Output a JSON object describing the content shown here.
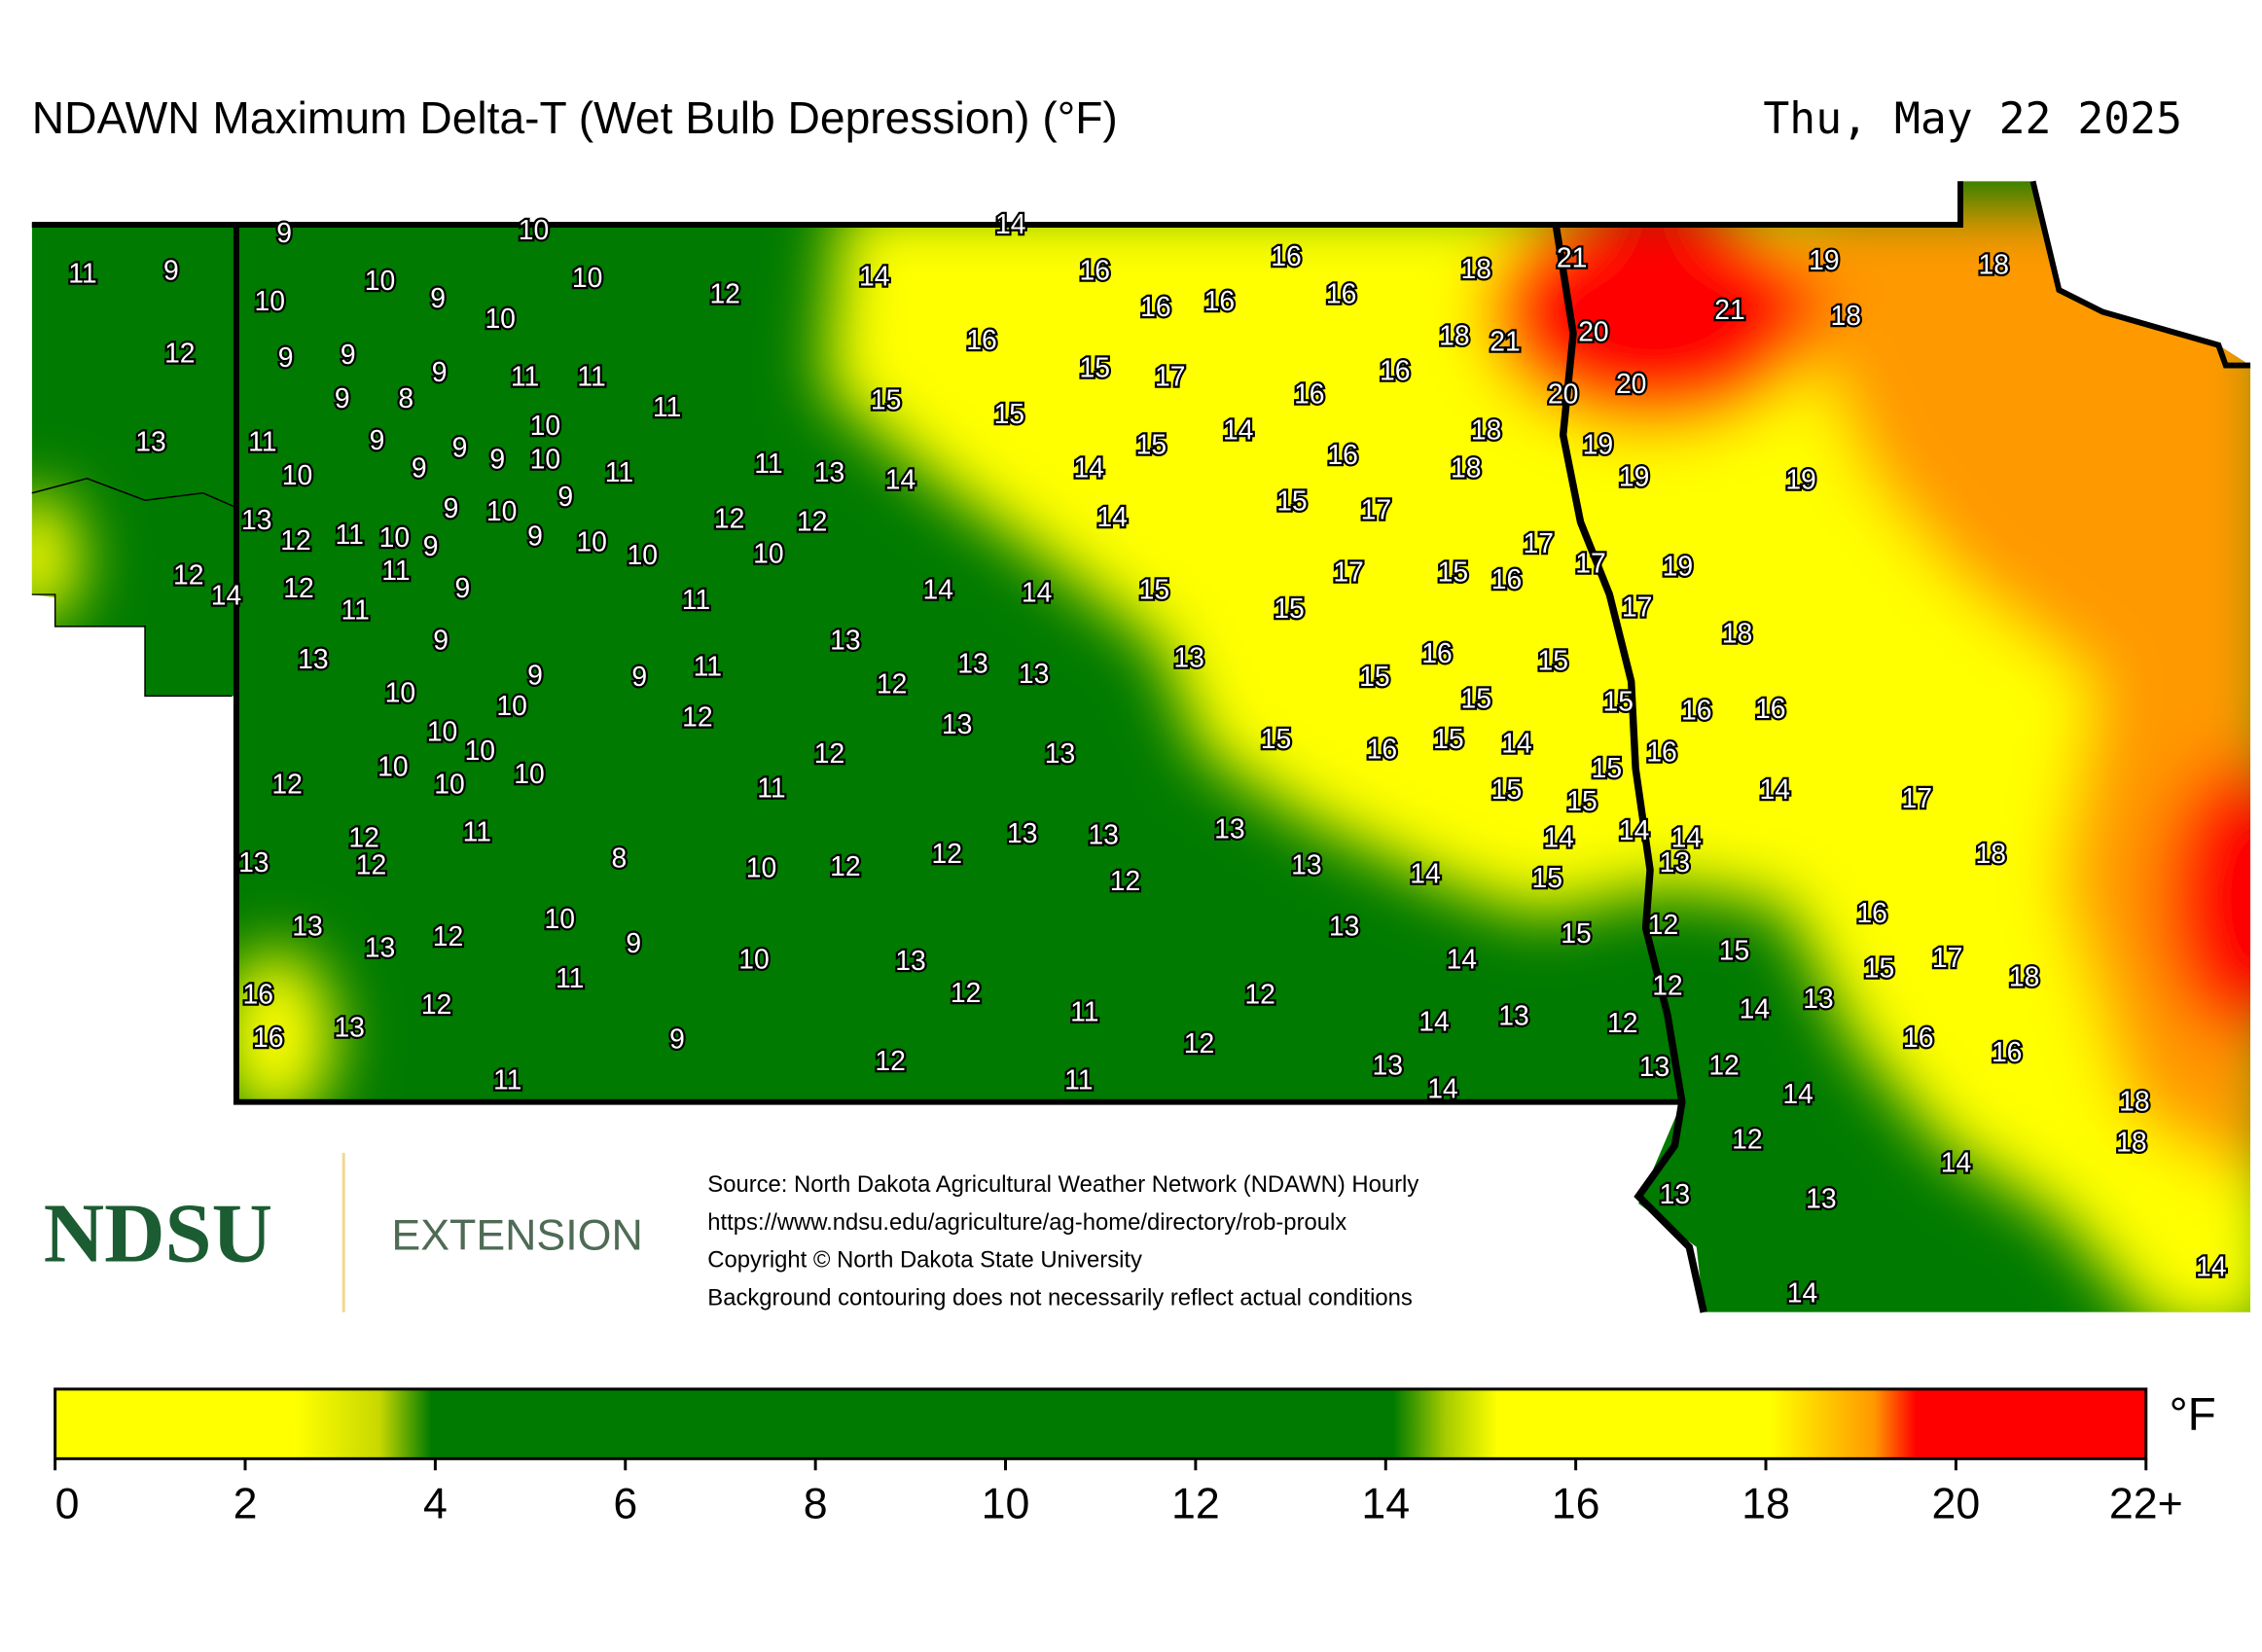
{
  "title": "NDAWN Maximum Delta-T (Wet Bulb Depression) (°F)",
  "date": "Thu, May 22 2025",
  "stations": [
    9,
    10,
    14,
    11,
    9,
    10,
    10,
    9,
    10,
    10,
    12,
    14,
    16,
    16,
    16,
    16,
    16,
    18,
    21,
    19,
    18,
    21,
    18,
    12,
    9,
    9,
    9,
    9,
    8,
    11,
    11,
    11,
    16,
    18,
    21,
    20,
    15,
    17,
    16,
    16,
    20,
    20,
    15,
    15,
    13,
    11,
    9,
    10,
    9,
    9,
    9,
    10,
    10,
    9,
    11,
    11,
    13,
    14,
    14,
    15,
    14,
    18,
    16,
    18,
    19,
    19,
    19,
    13,
    12,
    11,
    10,
    9,
    9,
    10,
    9,
    10,
    10,
    12,
    12,
    10,
    14,
    15,
    17,
    17,
    17,
    19,
    12,
    14,
    12,
    11,
    11,
    9,
    11,
    14,
    14,
    15,
    17,
    15,
    16,
    15,
    17,
    18,
    13,
    9,
    9,
    9,
    11,
    13,
    12,
    13,
    13,
    13,
    15,
    16,
    15,
    10,
    10,
    10,
    10,
    12,
    13,
    15,
    15,
    16,
    16,
    12,
    10,
    10,
    10,
    12,
    11,
    13,
    15,
    16,
    15,
    14,
    15,
    16,
    15,
    15,
    14,
    17,
    12,
    12,
    13,
    11,
    8,
    10,
    12,
    12,
    13,
    13,
    12,
    13,
    13,
    14,
    14,
    14,
    14,
    13,
    15,
    18,
    13,
    13,
    12,
    10,
    9,
    10,
    13,
    13,
    14,
    15,
    12,
    15,
    16,
    15,
    17,
    16,
    11,
    12,
    12,
    12,
    12,
    14,
    13,
    18,
    13,
    16,
    13,
    9,
    11,
    12,
    14,
    12,
    12,
    13,
    13,
    12,
    16,
    16,
    11,
    11,
    14,
    14,
    18,
    18,
    12,
    14,
    13,
    13,
    14,
    14
  ],
  "logo": {
    "name": "NDSU",
    "unit": "EXTENSION"
  },
  "source_lines": [
    "Source: North Dakota Agricultural Weather Network (NDAWN) Hourly",
    "https://www.ndsu.edu/agriculture/ag-home/directory/rob-proulx",
    "Copyright © North Dakota State University",
    "Background contouring does not necessarily reflect actual conditions"
  ],
  "legend": {
    "unit": "°F",
    "range": [
      0,
      22
    ],
    "ticks": [
      0,
      2,
      4,
      6,
      8,
      10,
      12,
      14,
      16,
      18,
      20,
      {
        "value": 22,
        "label": "22+"
      }
    ]
  }
}
